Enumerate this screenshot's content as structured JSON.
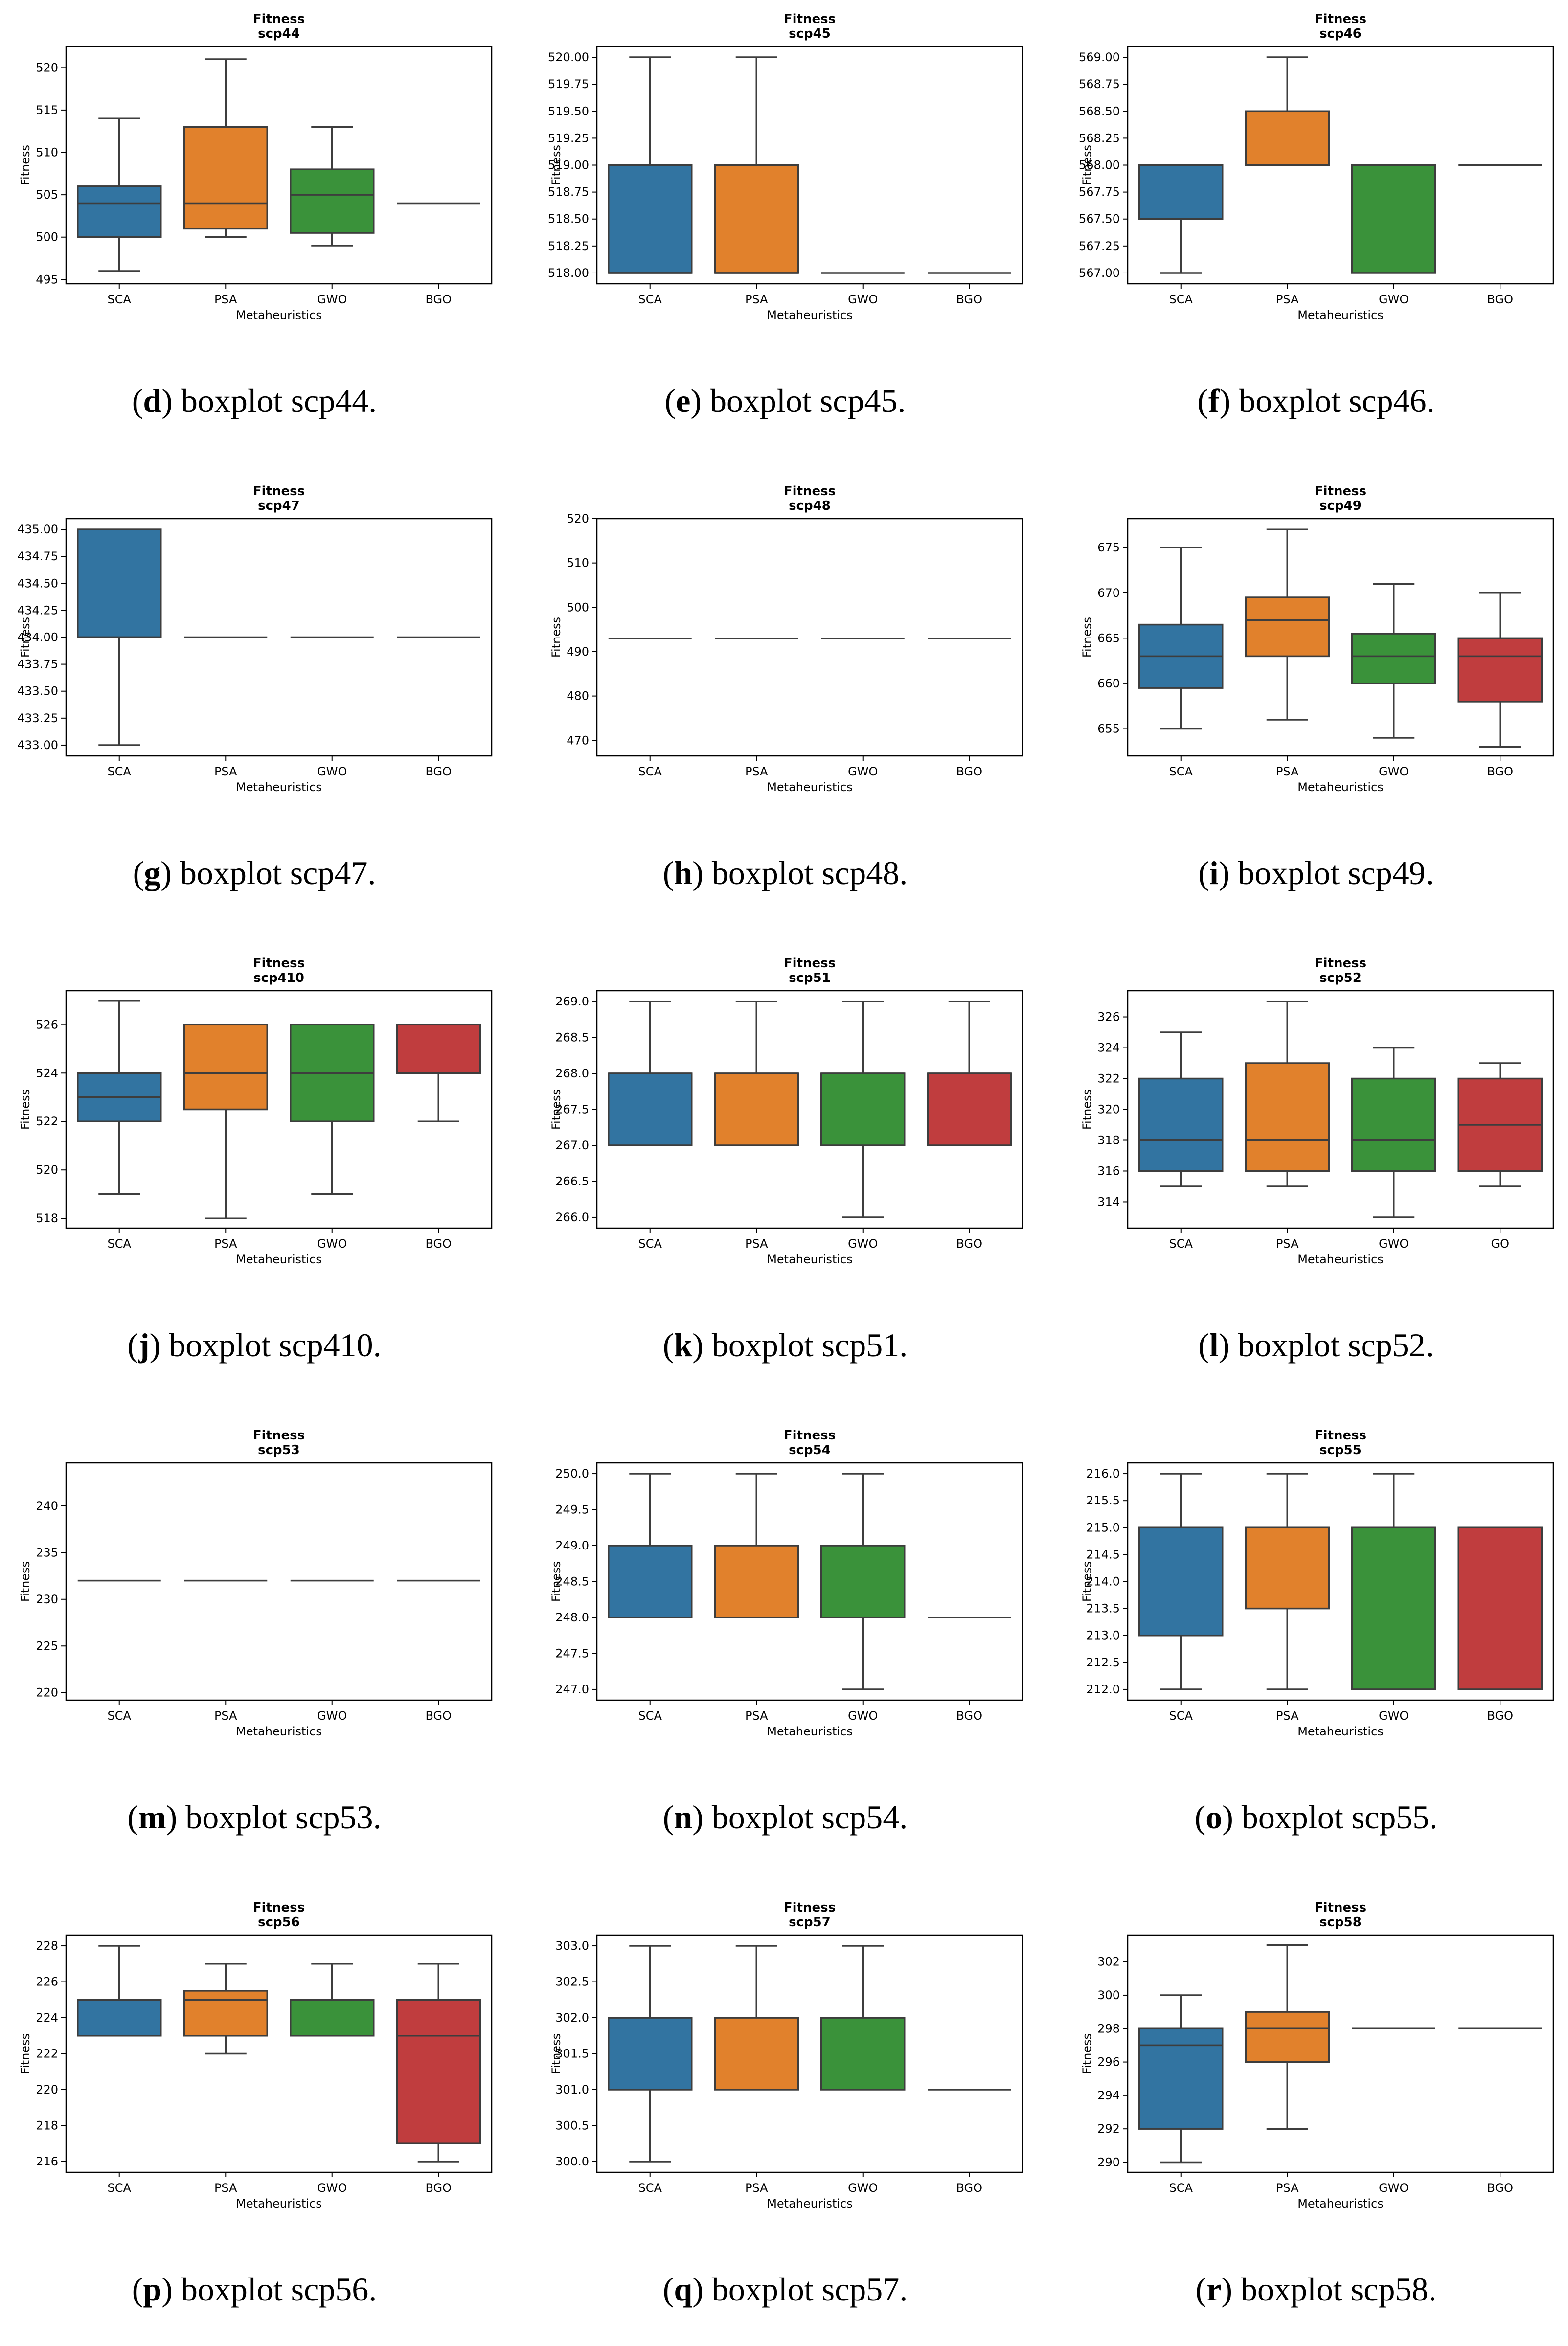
{
  "colors": {
    "SCA": "#3274a1",
    "PSA": "#e1812c",
    "GWO": "#3a923a",
    "BGO": "#c03d3e",
    "GO": "#c03d3e",
    "frame": "#000000",
    "line": "#3d3d3d"
  },
  "panels": [
    {
      "letter": "d",
      "caption": "boxplot scp44.",
      "chart_data": {
        "type": "boxplot",
        "title": "Fitness",
        "subtitle": "scp44",
        "xlabel": "Metaheuristics",
        "ylabel": "Fitness",
        "ylim": [
          494.5,
          522.5
        ],
        "yticks": [
          "495",
          "500",
          "505",
          "510",
          "515",
          "520"
        ],
        "categories": [
          "SCA",
          "PSA",
          "GWO",
          "BGO"
        ],
        "boxes": [
          {
            "whislo": 496,
            "q1": 500,
            "med": 504,
            "q3": 506,
            "whishi": 514
          },
          {
            "whislo": 500,
            "q1": 501,
            "med": 504,
            "q3": 513,
            "whishi": 521
          },
          {
            "whislo": 499,
            "q1": 500.5,
            "med": 505,
            "q3": 508,
            "whishi": 513
          },
          {
            "whislo": 504,
            "q1": 504,
            "med": 504,
            "q3": 504,
            "whishi": 504
          }
        ]
      }
    },
    {
      "letter": "e",
      "caption": "boxplot scp45.",
      "chart_data": {
        "type": "boxplot",
        "title": "Fitness",
        "subtitle": "scp45",
        "xlabel": "Metaheuristics",
        "ylabel": "Fitness",
        "ylim": [
          517.9,
          520.1
        ],
        "yticks": [
          "518.00",
          "518.25",
          "518.50",
          "518.75",
          "519.00",
          "519.25",
          "519.50",
          "519.75",
          "520.00"
        ],
        "categories": [
          "SCA",
          "PSA",
          "GWO",
          "BGO"
        ],
        "boxes": [
          {
            "whislo": 518,
            "q1": 518,
            "med": 518,
            "q3": 519,
            "whishi": 520
          },
          {
            "whislo": 518,
            "q1": 518,
            "med": 518,
            "q3": 519,
            "whishi": 520
          },
          {
            "whislo": 518,
            "q1": 518,
            "med": 518,
            "q3": 518,
            "whishi": 518
          },
          {
            "whislo": 518,
            "q1": 518,
            "med": 518,
            "q3": 518,
            "whishi": 518
          }
        ]
      }
    },
    {
      "letter": "f",
      "caption": "boxplot scp46.",
      "chart_data": {
        "type": "boxplot",
        "title": "Fitness",
        "subtitle": "scp46",
        "xlabel": "Metaheuristics",
        "ylabel": "Fitness",
        "ylim": [
          566.9,
          569.1
        ],
        "yticks": [
          "567.00",
          "567.25",
          "567.50",
          "567.75",
          "568.00",
          "568.25",
          "568.50",
          "568.75",
          "569.00"
        ],
        "categories": [
          "SCA",
          "PSA",
          "GWO",
          "BGO"
        ],
        "boxes": [
          {
            "whislo": 567,
            "q1": 567.5,
            "med": 568,
            "q3": 568,
            "whishi": 568
          },
          {
            "whislo": 568,
            "q1": 568,
            "med": 568,
            "q3": 568.5,
            "whishi": 569
          },
          {
            "whislo": 567,
            "q1": 567,
            "med": 568,
            "q3": 568,
            "whishi": 568
          },
          {
            "whislo": 568,
            "q1": 568,
            "med": 568,
            "q3": 568,
            "whishi": 568
          }
        ]
      }
    },
    {
      "letter": "g",
      "caption": "boxplot scp47.",
      "chart_data": {
        "type": "boxplot",
        "title": "Fitness",
        "subtitle": "scp47",
        "xlabel": "Metaheuristics",
        "ylabel": "Fitness",
        "ylim": [
          432.9,
          435.1
        ],
        "yticks": [
          "433.00",
          "433.25",
          "433.50",
          "433.75",
          "434.00",
          "434.25",
          "434.50",
          "434.75",
          "435.00"
        ],
        "categories": [
          "SCA",
          "PSA",
          "GWO",
          "BGO"
        ],
        "boxes": [
          {
            "whislo": 433,
            "q1": 434,
            "med": 434,
            "q3": 435,
            "whishi": 435
          },
          {
            "whislo": 434,
            "q1": 434,
            "med": 434,
            "q3": 434,
            "whishi": 434
          },
          {
            "whislo": 434,
            "q1": 434,
            "med": 434,
            "q3": 434,
            "whishi": 434
          },
          {
            "whislo": 434,
            "q1": 434,
            "med": 434,
            "q3": 434,
            "whishi": 434
          }
        ]
      }
    },
    {
      "letter": "h",
      "caption": "boxplot scp48.",
      "chart_data": {
        "type": "boxplot",
        "title": "Fitness",
        "subtitle": "scp48",
        "xlabel": "Metaheuristics",
        "ylabel": "Fitness",
        "ylim": [
          466.5,
          520
        ],
        "yticks": [
          "470",
          "480",
          "490",
          "500",
          "510",
          "520"
        ],
        "categories": [
          "SCA",
          "PSA",
          "GWO",
          "BGO"
        ],
        "boxes": [
          {
            "whislo": 493,
            "q1": 493,
            "med": 493,
            "q3": 493,
            "whishi": 493
          },
          {
            "whislo": 493,
            "q1": 493,
            "med": 493,
            "q3": 493,
            "whishi": 493
          },
          {
            "whislo": 493,
            "q1": 493,
            "med": 493,
            "q3": 493,
            "whishi": 493
          },
          {
            "whislo": 493,
            "q1": 493,
            "med": 493,
            "q3": 493,
            "whishi": 493
          }
        ]
      }
    },
    {
      "letter": "i",
      "caption": "boxplot scp49.",
      "chart_data": {
        "type": "boxplot",
        "title": "Fitness",
        "subtitle": "scp49",
        "xlabel": "Metaheuristics",
        "ylabel": "Fitness",
        "ylim": [
          652,
          678.2
        ],
        "yticks": [
          "655",
          "660",
          "665",
          "670",
          "675"
        ],
        "categories": [
          "SCA",
          "PSA",
          "GWO",
          "BGO"
        ],
        "boxes": [
          {
            "whislo": 655,
            "q1": 659.5,
            "med": 663,
            "q3": 666.5,
            "whishi": 675
          },
          {
            "whislo": 656,
            "q1": 663,
            "med": 667,
            "q3": 669.5,
            "whishi": 677
          },
          {
            "whislo": 654,
            "q1": 660,
            "med": 663,
            "q3": 665.5,
            "whishi": 671
          },
          {
            "whislo": 653,
            "q1": 658,
            "med": 663,
            "q3": 665,
            "whishi": 670
          }
        ]
      }
    },
    {
      "letter": "j",
      "caption": "boxplot scp410.",
      "chart_data": {
        "type": "boxplot",
        "title": "Fitness",
        "subtitle": "scp410",
        "xlabel": "Metaheuristics",
        "ylabel": "Fitness",
        "ylim": [
          517.6,
          527.4
        ],
        "yticks": [
          "518",
          "520",
          "522",
          "524",
          "526"
        ],
        "categories": [
          "SCA",
          "PSA",
          "GWO",
          "BGO"
        ],
        "boxes": [
          {
            "whislo": 519,
            "q1": 522,
            "med": 523,
            "q3": 524,
            "whishi": 527
          },
          {
            "whislo": 518,
            "q1": 522.5,
            "med": 524,
            "q3": 526,
            "whishi": 526
          },
          {
            "whislo": 519,
            "q1": 522,
            "med": 524,
            "q3": 526,
            "whishi": 526
          },
          {
            "whislo": 522,
            "q1": 524,
            "med": 526,
            "q3": 526,
            "whishi": 526
          }
        ]
      }
    },
    {
      "letter": "k",
      "caption": "boxplot scp51.",
      "chart_data": {
        "type": "boxplot",
        "title": "Fitness",
        "subtitle": "scp51",
        "xlabel": "Metaheuristics",
        "ylabel": "Fitness",
        "ylim": [
          265.85,
          269.15
        ],
        "yticks": [
          "266.0",
          "266.5",
          "267.0",
          "267.5",
          "268.0",
          "268.5",
          "269.0"
        ],
        "categories": [
          "SCA",
          "PSA",
          "GWO",
          "BGO"
        ],
        "boxes": [
          {
            "whislo": 267,
            "q1": 267,
            "med": 268,
            "q3": 268,
            "whishi": 269
          },
          {
            "whislo": 267,
            "q1": 267,
            "med": 268,
            "q3": 268,
            "whishi": 269
          },
          {
            "whislo": 266,
            "q1": 267,
            "med": 268,
            "q3": 268,
            "whishi": 269
          },
          {
            "whislo": 267,
            "q1": 267,
            "med": 268,
            "q3": 268,
            "whishi": 269
          }
        ]
      }
    },
    {
      "letter": "l",
      "caption": "boxplot scp52.",
      "chart_data": {
        "type": "boxplot",
        "title": "Fitness",
        "subtitle": "scp52",
        "xlabel": "Metaheuristics",
        "ylabel": "Fitness",
        "ylim": [
          312.3,
          327.7
        ],
        "yticks": [
          "314",
          "316",
          "318",
          "320",
          "322",
          "324",
          "326"
        ],
        "categories": [
          "SCA",
          "PSA",
          "GWO",
          "GO"
        ],
        "boxes": [
          {
            "whislo": 315,
            "q1": 316,
            "med": 318,
            "q3": 322,
            "whishi": 325
          },
          {
            "whislo": 315,
            "q1": 316,
            "med": 318,
            "q3": 323,
            "whishi": 327
          },
          {
            "whislo": 313,
            "q1": 316,
            "med": 318,
            "q3": 322,
            "whishi": 324
          },
          {
            "whislo": 315,
            "q1": 316,
            "med": 319,
            "q3": 322,
            "whishi": 323
          }
        ]
      }
    },
    {
      "letter": "m",
      "caption": "boxplot scp53.",
      "chart_data": {
        "type": "boxplot",
        "title": "Fitness",
        "subtitle": "scp53",
        "xlabel": "Metaheuristics",
        "ylabel": "Fitness",
        "ylim": [
          219.2,
          244.6
        ],
        "yticks": [
          "220",
          "225",
          "230",
          "235",
          "240"
        ],
        "categories": [
          "SCA",
          "PSA",
          "GWO",
          "BGO"
        ],
        "boxes": [
          {
            "whislo": 232,
            "q1": 232,
            "med": 232,
            "q3": 232,
            "whishi": 232
          },
          {
            "whislo": 232,
            "q1": 232,
            "med": 232,
            "q3": 232,
            "whishi": 232
          },
          {
            "whislo": 232,
            "q1": 232,
            "med": 232,
            "q3": 232,
            "whishi": 232
          },
          {
            "whislo": 232,
            "q1": 232,
            "med": 232,
            "q3": 232,
            "whishi": 232
          }
        ]
      }
    },
    {
      "letter": "n",
      "caption": "boxplot scp54.",
      "chart_data": {
        "type": "boxplot",
        "title": "Fitness",
        "subtitle": "scp54",
        "xlabel": "Metaheuristics",
        "ylabel": "Fitness",
        "ylim": [
          246.85,
          250.15
        ],
        "yticks": [
          "247.0",
          "247.5",
          "248.0",
          "248.5",
          "249.0",
          "249.5",
          "250.0"
        ],
        "categories": [
          "SCA",
          "PSA",
          "GWO",
          "BGO"
        ],
        "boxes": [
          {
            "whislo": 248,
            "q1": 248,
            "med": 248,
            "q3": 249,
            "whishi": 250
          },
          {
            "whislo": 248,
            "q1": 248,
            "med": 248,
            "q3": 249,
            "whishi": 250
          },
          {
            "whislo": 247,
            "q1": 248,
            "med": 248,
            "q3": 249,
            "whishi": 250
          },
          {
            "whislo": 248,
            "q1": 248,
            "med": 248,
            "q3": 248,
            "whishi": 248
          }
        ]
      }
    },
    {
      "letter": "o",
      "caption": "boxplot scp55.",
      "chart_data": {
        "type": "boxplot",
        "title": "Fitness",
        "subtitle": "scp55",
        "xlabel": "Metaheuristics",
        "ylabel": "Fitness",
        "ylim": [
          211.8,
          216.2
        ],
        "yticks": [
          "212.0",
          "212.5",
          "213.0",
          "213.5",
          "214.0",
          "214.5",
          "215.0",
          "215.5",
          "216.0"
        ],
        "categories": [
          "SCA",
          "PSA",
          "GWO",
          "BGO"
        ],
        "boxes": [
          {
            "whislo": 212,
            "q1": 213,
            "med": 215,
            "q3": 215,
            "whishi": 216
          },
          {
            "whislo": 212,
            "q1": 213.5,
            "med": 215,
            "q3": 215,
            "whishi": 216
          },
          {
            "whislo": 212,
            "q1": 212,
            "med": 215,
            "q3": 215,
            "whishi": 216
          },
          {
            "whislo": 212,
            "q1": 212,
            "med": 215,
            "q3": 215,
            "whishi": 215
          }
        ]
      }
    },
    {
      "letter": "p",
      "caption": "boxplot scp56.",
      "chart_data": {
        "type": "boxplot",
        "title": "Fitness",
        "subtitle": "scp56",
        "xlabel": "Metaheuristics",
        "ylabel": "Fitness",
        "ylim": [
          215.4,
          228.6
        ],
        "yticks": [
          "216",
          "218",
          "220",
          "222",
          "224",
          "226",
          "228"
        ],
        "categories": [
          "SCA",
          "PSA",
          "GWO",
          "BGO"
        ],
        "boxes": [
          {
            "whislo": 223,
            "q1": 223,
            "med": 225,
            "q3": 225,
            "whishi": 228
          },
          {
            "whislo": 222,
            "q1": 223,
            "med": 225,
            "q3": 225.5,
            "whishi": 227
          },
          {
            "whislo": 223,
            "q1": 223,
            "med": 225,
            "q3": 225,
            "whishi": 227
          },
          {
            "whislo": 216,
            "q1": 217,
            "med": 223,
            "q3": 225,
            "whishi": 227
          }
        ]
      }
    },
    {
      "letter": "q",
      "caption": "boxplot scp57.",
      "chart_data": {
        "type": "boxplot",
        "title": "Fitness",
        "subtitle": "scp57",
        "xlabel": "Metaheuristics",
        "ylabel": "Fitness",
        "ylim": [
          299.85,
          303.15
        ],
        "yticks": [
          "300.0",
          "300.5",
          "301.0",
          "301.5",
          "302.0",
          "302.5",
          "303.0"
        ],
        "categories": [
          "SCA",
          "PSA",
          "GWO",
          "BGO"
        ],
        "boxes": [
          {
            "whislo": 300,
            "q1": 301,
            "med": 302,
            "q3": 302,
            "whishi": 303
          },
          {
            "whislo": 301,
            "q1": 301,
            "med": 302,
            "q3": 302,
            "whishi": 303
          },
          {
            "whislo": 301,
            "q1": 301,
            "med": 302,
            "q3": 302,
            "whishi": 303
          },
          {
            "whislo": 301,
            "q1": 301,
            "med": 301,
            "q3": 301,
            "whishi": 301
          }
        ]
      }
    },
    {
      "letter": "r",
      "caption": "boxplot scp58.",
      "chart_data": {
        "type": "boxplot",
        "title": "Fitness",
        "subtitle": "scp58",
        "xlabel": "Metaheuristics",
        "ylabel": "Fitness",
        "ylim": [
          289.4,
          303.6
        ],
        "yticks": [
          "290",
          "292",
          "294",
          "296",
          "298",
          "300",
          "302"
        ],
        "categories": [
          "SCA",
          "PSA",
          "GWO",
          "BGO"
        ],
        "boxes": [
          {
            "whislo": 290,
            "q1": 292,
            "med": 297,
            "q3": 298,
            "whishi": 300
          },
          {
            "whislo": 292,
            "q1": 296,
            "med": 298,
            "q3": 299,
            "whishi": 303
          },
          {
            "whislo": 298,
            "q1": 298,
            "med": 298,
            "q3": 298,
            "whishi": 298
          },
          {
            "whislo": 298,
            "q1": 298,
            "med": 298,
            "q3": 298,
            "whishi": 298
          }
        ]
      }
    }
  ]
}
